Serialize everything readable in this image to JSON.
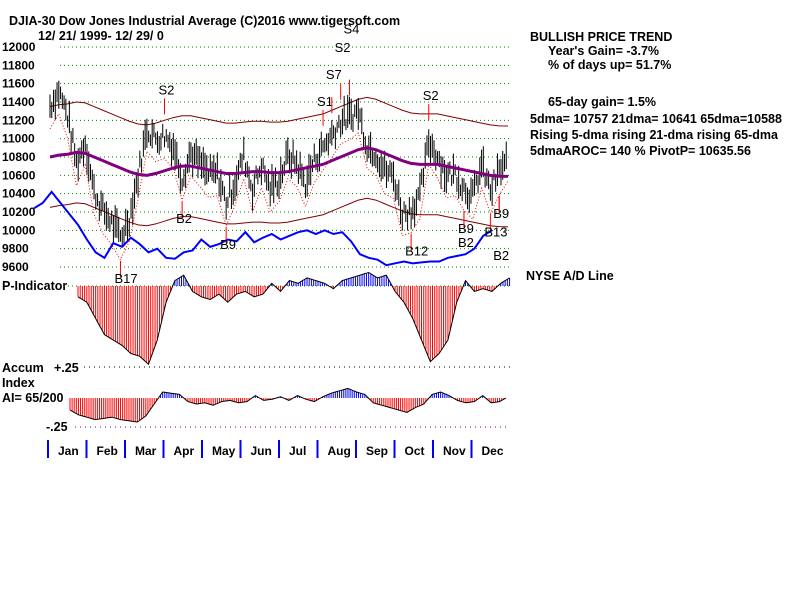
{
  "header": {
    "title": "DJIA-30  Dow Jones Industrial Average   (C)2016 www.tigersoft.com",
    "dates": "12/ 21/ 1999- 12/ 29/ 0"
  },
  "stats": {
    "trend": "BULLISH PRICE TREND",
    "years_gain": "Year's Gain= -3.7%",
    "days_up": "% of days up= 51.7%",
    "gain65": "65-day gain= 1.5%",
    "dmas": "5dma= 10757 21dma= 10641 65dma=10588",
    "rising": "Rising 5-dma  rising 21-dma  rising 65-dma",
    "aroc": "5dmaAROC= 140 %  PivotP= 10635.56"
  },
  "labels": {
    "pind": "P-Indicator",
    "accum": "Accum",
    "index": "Index",
    "ai": "AI= 65/200",
    "plus": "+.25",
    "minus": "-.25",
    "adline": "NYSE A/D Line"
  },
  "colors": {
    "grid": "#008000",
    "bars": "#000000",
    "ma21": "#800000",
    "ma65": "#800080",
    "adline": "#0000ff",
    "neg": "#ff0000",
    "pos": "#0000ff"
  },
  "chart_data": {
    "type": "line",
    "title": "DJIA-30 Dow Jones Industrial Average",
    "ylim": [
      9600,
      12000
    ],
    "yticks": [
      12000,
      11800,
      11600,
      11400,
      11200,
      11000,
      10800,
      10600,
      10400,
      10200,
      10000,
      9800,
      9600
    ],
    "months": [
      "Jan",
      "Feb",
      "Mar",
      "Apr",
      "May",
      "Jun",
      "Jul",
      "Aug",
      "Sep",
      "Oct",
      "Nov",
      "Dec"
    ],
    "weekly_close": [
      11357,
      11522,
      11251,
      10738,
      10963,
      10425,
      10219,
      10092,
      9928,
      10131,
      10595,
      11112,
      11001,
      11033,
      10923,
      10582,
      10844,
      10731,
      10610,
      10627,
      10299,
      10522,
      10815,
      10449,
      10714,
      10450,
      10560,
      10812,
      10733,
      10511,
      10768,
      10908,
      11046,
      11192,
      11238,
      11310,
      10927,
      10847,
      10650,
      10596,
      10192,
      10226,
      10380,
      10971,
      10817,
      10602,
      10629,
      10470,
      10373,
      10712,
      10435,
      10636,
      10787
    ],
    "ma65_weekly": [
      10800,
      10820,
      10830,
      10850,
      10840,
      10800,
      10760,
      10720,
      10680,
      10640,
      10610,
      10600,
      10620,
      10650,
      10680,
      10700,
      10700,
      10680,
      10660,
      10640,
      10620,
      10620,
      10630,
      10640,
      10640,
      10630,
      10630,
      10640,
      10660,
      10680,
      10700,
      10720,
      10760,
      10800,
      10840,
      10880,
      10900,
      10880,
      10840,
      10800,
      10760,
      10730,
      10720,
      10720,
      10720,
      10700,
      10680,
      10660,
      10640,
      10620,
      10600,
      10590,
      10588
    ],
    "p_indicator": [
      -40,
      -60,
      -120,
      -180,
      -200,
      -220,
      -250,
      -260,
      -290,
      -200,
      -60,
      20,
      40,
      -20,
      -40,
      -50,
      -30,
      -60,
      -30,
      -20,
      -40,
      -30,
      10,
      -20,
      20,
      10,
      30,
      20,
      10,
      -10,
      20,
      30,
      40,
      50,
      30,
      40,
      -20,
      -60,
      -120,
      -200,
      -280,
      -250,
      -200,
      -60,
      20,
      -20,
      -10,
      -20,
      10,
      30,
      20,
      60,
      80
    ],
    "accum_index": [
      -0.1,
      -0.14,
      -0.16,
      -0.18,
      -0.17,
      -0.16,
      -0.18,
      -0.19,
      -0.2,
      -0.15,
      -0.05,
      0.05,
      0.04,
      0.03,
      -0.03,
      -0.05,
      -0.04,
      -0.06,
      -0.03,
      -0.02,
      -0.04,
      -0.03,
      0.02,
      -0.02,
      -0.01,
      0.01,
      -0.02,
      0.02,
      -0.01,
      -0.03,
      0.01,
      0.04,
      0.06,
      0.08,
      0.05,
      0.03,
      -0.04,
      -0.06,
      -0.08,
      -0.1,
      -0.12,
      -0.08,
      -0.05,
      0.03,
      0.05,
      0.02,
      -0.02,
      -0.04,
      -0.03,
      0.02,
      -0.04,
      -0.03,
      0.01
    ],
    "ad_line": [
      10240,
      10300,
      10420,
      10300,
      10180,
      10060,
      9900,
      9760,
      9700,
      9860,
      9820,
      9920,
      9850,
      9760,
      9800,
      9700,
      9690,
      9760,
      9780,
      9900,
      9820,
      9850,
      9900,
      9880,
      9980,
      9870,
      9920,
      9960,
      9900,
      9940,
      9980,
      10000,
      9960,
      10000,
      9960,
      9980,
      9880,
      9740,
      9700,
      9680,
      9620,
      9640,
      9660,
      9640,
      9650,
      9660,
      9660,
      9700,
      9720,
      9740,
      9800,
      9940,
      10000
    ],
    "signals": [
      {
        "label": "S2",
        "week": 13,
        "type": "sell"
      },
      {
        "label": "S1",
        "week": 31,
        "type": "sell"
      },
      {
        "label": "S7",
        "week": 32,
        "type": "sell"
      },
      {
        "label": "S2",
        "week": 33,
        "type": "sell"
      },
      {
        "label": "S4",
        "week": 34,
        "type": "sell"
      },
      {
        "label": "S2",
        "week": 43,
        "type": "sell"
      },
      {
        "label": "B17",
        "week": 8,
        "type": "buy"
      },
      {
        "label": "B2",
        "week": 15,
        "type": "buy"
      },
      {
        "label": "B9",
        "week": 20,
        "type": "buy"
      },
      {
        "label": "B12",
        "week": 41,
        "type": "buy"
      },
      {
        "label": "B9",
        "week": 47,
        "type": "buy"
      },
      {
        "label": "B2",
        "week": 47,
        "type": "buy"
      },
      {
        "label": "B13",
        "week": 50,
        "type": "buy"
      },
      {
        "label": "B9",
        "week": 51,
        "type": "buy"
      },
      {
        "label": "B2",
        "week": 51,
        "type": "buy"
      }
    ]
  }
}
